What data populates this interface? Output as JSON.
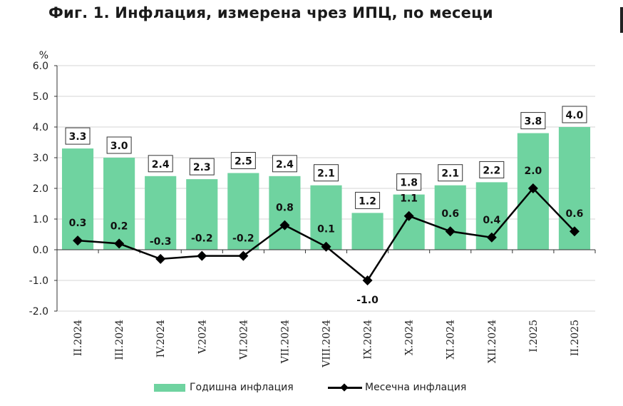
{
  "title": "Фиг. 1. Инфлация, измерена чрез ИПЦ, по месеци",
  "colors": {
    "bar": "#6fd3a0",
    "line": "#000000",
    "axis": "#333333",
    "grid": "#d4d4d4",
    "label_box_border": "#333333"
  },
  "chart_data": {
    "type": "bar",
    "title": "Фиг. 1. Инфлация, измерена чрез ИПЦ, по месеци",
    "ylabel": "%",
    "xlabel": "",
    "ylim": [
      -2.0,
      6.0
    ],
    "yticks": [
      "-2.0",
      "-1.0",
      "0.0",
      "1.0",
      "2.0",
      "3.0",
      "4.0",
      "5.0",
      "6.0"
    ],
    "grid": true,
    "legend_position": "bottom",
    "categories": [
      "II.2024",
      "III.2024",
      "IV.2024",
      "V.2024",
      "VI.2024",
      "VII.2024",
      "VIII.2024",
      "IX.2024",
      "X.2024",
      "XI.2024",
      "XII.2024",
      "I.2025",
      "II.2025"
    ],
    "series": [
      {
        "name": "Годишна инфлация",
        "type": "bar",
        "values": [
          3.3,
          3.0,
          2.4,
          2.3,
          2.5,
          2.4,
          2.1,
          1.2,
          1.8,
          2.1,
          2.2,
          3.8,
          4.0
        ],
        "labels": [
          "3.3",
          "3.0",
          "2.4",
          "2.3",
          "2.5",
          "2.4",
          "2.1",
          "1.2",
          "1.8",
          "2.1",
          "2.2",
          "3.8",
          "4.0"
        ]
      },
      {
        "name": "Месечна инфлация",
        "type": "line",
        "marker": "diamond",
        "values": [
          0.3,
          0.2,
          -0.3,
          -0.2,
          -0.2,
          0.8,
          0.1,
          -1.0,
          1.1,
          0.6,
          0.4,
          2.0,
          0.6
        ],
        "labels": [
          "0.3",
          "0.2",
          "-0.3",
          "-0.2",
          "-0.2",
          "0.8",
          "0.1",
          "-1.0",
          "1.1",
          "0.6",
          "0.4",
          "2.0",
          "0.6"
        ]
      }
    ]
  }
}
